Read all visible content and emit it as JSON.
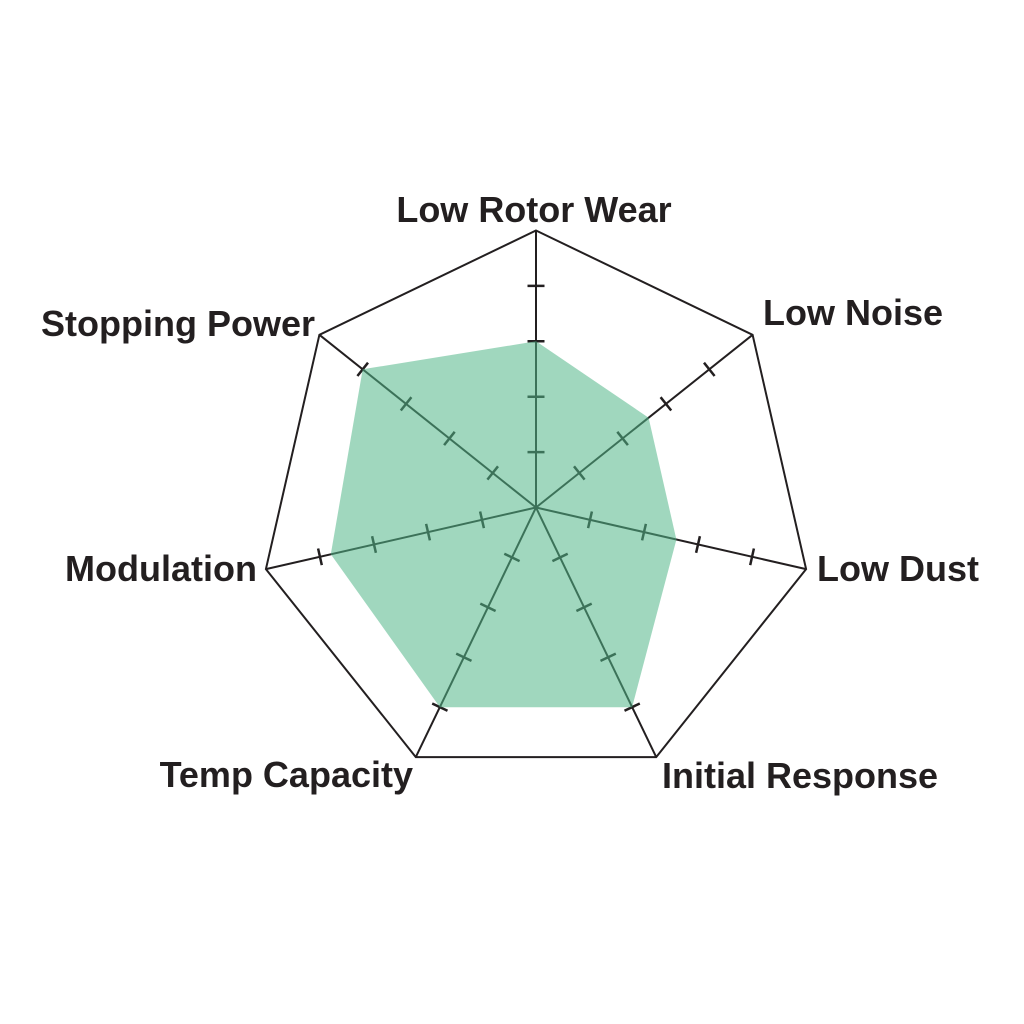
{
  "chart_data": {
    "type": "radar",
    "categories": [
      "Low Rotor Wear",
      "Low Noise",
      "Low Dust",
      "Initial Response",
      "Temp Capacity",
      "Modulation",
      "Stopping Power"
    ],
    "series": [
      {
        "values": [
          3.0,
          2.6,
          2.6,
          4.0,
          4.0,
          3.8,
          4.0
        ]
      }
    ],
    "scale": {
      "min": 0,
      "max": 5,
      "tick_values": [
        1,
        2,
        3,
        4
      ]
    },
    "legend": "none",
    "grid": "outer-polygon-with-axis-ticks",
    "layout_hint": "7 axes, first axis pointing up, clockwise order",
    "colors": {
      "background": "#FFFFFF",
      "axis_line": "#231F20",
      "tick_mark": "#231F20",
      "label_text": "#231F20",
      "fill": "#52B788",
      "fill_opacity": 0.55
    }
  }
}
